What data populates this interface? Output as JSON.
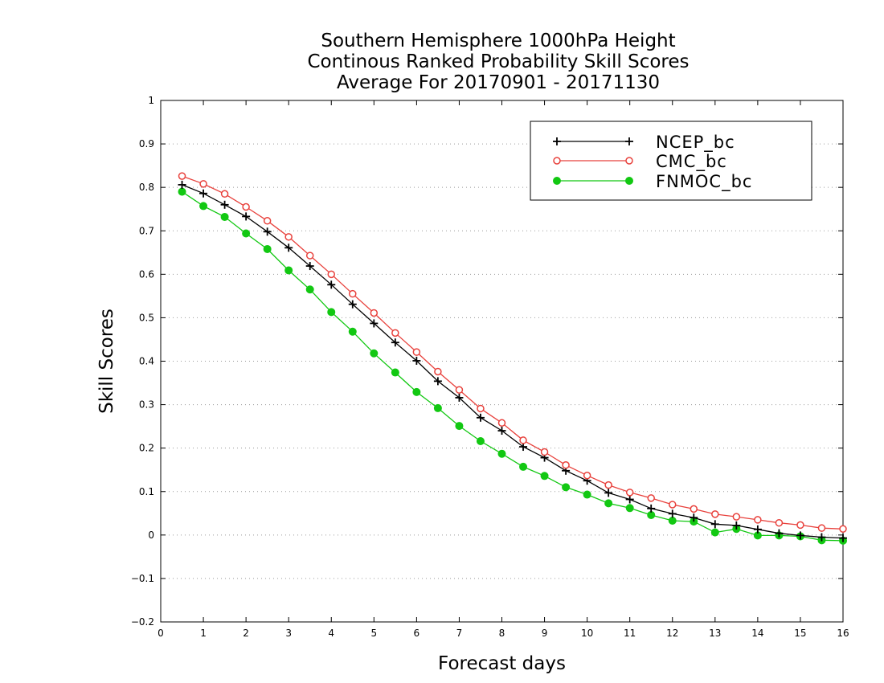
{
  "chart_data": {
    "type": "line",
    "title": [
      "Southern Hemisphere 1000hPa Height",
      "Continous Ranked Probability Skill Scores",
      "Average For 20170901 - 20171130"
    ],
    "xlabel": "Forecast days",
    "ylabel": "Skill Scores",
    "xlim": [
      0,
      16
    ],
    "ylim": [
      -0.2,
      1
    ],
    "xticks": [
      0,
      1,
      2,
      3,
      4,
      5,
      6,
      7,
      8,
      9,
      10,
      11,
      12,
      13,
      14,
      15,
      16
    ],
    "yticks": [
      -0.2,
      -0.1,
      0,
      0.1,
      0.2,
      0.3,
      0.4,
      0.5,
      0.6,
      0.7,
      0.8,
      0.9,
      1
    ],
    "ytick_labels": [
      "−0.2",
      "−0.1",
      "0",
      "0.1",
      "0.2",
      "0.3",
      "0.4",
      "0.5",
      "0.6",
      "0.7",
      "0.8",
      "0.9",
      "1"
    ],
    "grid": "horizontal dotted",
    "legend_position": "top-right",
    "x": [
      0.5,
      1,
      1.5,
      2,
      2.5,
      3,
      3.5,
      4,
      4.5,
      5,
      5.5,
      6,
      6.5,
      7,
      7.5,
      8,
      8.5,
      9,
      9.5,
      10,
      10.5,
      11,
      11.5,
      12,
      12.5,
      13,
      13.5,
      14,
      14.5,
      15,
      15.5,
      16
    ],
    "series": [
      {
        "name": "NCEP_bc",
        "color": "#000000",
        "marker": "plus",
        "values": [
          0.806,
          0.786,
          0.76,
          0.733,
          0.698,
          0.661,
          0.619,
          0.576,
          0.531,
          0.487,
          0.443,
          0.401,
          0.354,
          0.316,
          0.27,
          0.24,
          0.203,
          0.178,
          0.148,
          0.125,
          0.097,
          0.082,
          0.061,
          0.049,
          0.04,
          0.025,
          0.022,
          0.013,
          0.004,
          -0.001,
          -0.005,
          -0.007
        ]
      },
      {
        "name": "CMC_bc",
        "color": "#e8413c",
        "marker": "open-circle",
        "values": [
          0.826,
          0.808,
          0.785,
          0.755,
          0.723,
          0.686,
          0.643,
          0.6,
          0.555,
          0.511,
          0.465,
          0.421,
          0.376,
          0.334,
          0.291,
          0.258,
          0.218,
          0.191,
          0.161,
          0.137,
          0.115,
          0.098,
          0.085,
          0.07,
          0.06,
          0.048,
          0.042,
          0.035,
          0.028,
          0.023,
          0.016,
          0.014
        ]
      },
      {
        "name": "FNMOC_bc",
        "color": "#12c812",
        "marker": "filled-circle",
        "values": [
          0.79,
          0.757,
          0.732,
          0.694,
          0.658,
          0.609,
          0.565,
          0.513,
          0.468,
          0.418,
          0.374,
          0.329,
          0.292,
          0.251,
          0.216,
          0.187,
          0.157,
          0.136,
          0.11,
          0.093,
          0.073,
          0.062,
          0.046,
          0.033,
          0.031,
          0.006,
          0.014,
          -0.001,
          -0.001,
          -0.003,
          -0.012,
          -0.013
        ]
      }
    ]
  }
}
